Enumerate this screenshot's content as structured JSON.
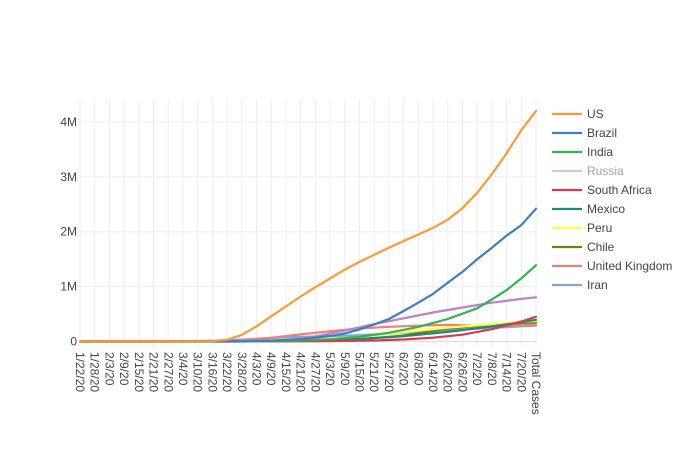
{
  "chart_data": {
    "type": "line",
    "title": "",
    "xlabel": "",
    "ylabel": "",
    "x_ticks": [
      "1/22/20",
      "1/28/20",
      "2/3/20",
      "2/9/20",
      "2/15/20",
      "2/21/20",
      "2/27/20",
      "3/4/20",
      "3/10/20",
      "3/16/20",
      "3/22/20",
      "3/28/20",
      "4/3/20",
      "4/9/20",
      "4/15/20",
      "4/21/20",
      "4/27/20",
      "5/3/20",
      "5/9/20",
      "5/15/20",
      "5/21/20",
      "5/27/20",
      "6/2/20",
      "6/8/20",
      "6/14/20",
      "6/20/20",
      "6/26/20",
      "7/2/20",
      "7/8/20",
      "7/14/20",
      "7/20/20",
      "Total Cases"
    ],
    "y_ticks": [
      {
        "value": 0,
        "label": "0"
      },
      {
        "value": 1000000,
        "label": "1M"
      },
      {
        "value": 2000000,
        "label": "2M"
      },
      {
        "value": 3000000,
        "label": "3M"
      },
      {
        "value": 4000000,
        "label": "4M"
      }
    ],
    "ylim": [
      -100000,
      4400000
    ],
    "legend_position": "right",
    "grid": true,
    "series": [
      {
        "name": "US",
        "color": "#ff9933",
        "legend_dim": false,
        "points": [
          [
            "1/22/20",
            0
          ],
          [
            "2/15/20",
            15
          ],
          [
            "3/4/20",
            150
          ],
          [
            "3/16/20",
            4600
          ],
          [
            "3/22/20",
            33000
          ],
          [
            "3/28/20",
            120000
          ],
          [
            "4/3/20",
            275000
          ],
          [
            "4/9/20",
            460000
          ],
          [
            "4/15/20",
            640000
          ],
          [
            "4/21/20",
            820000
          ],
          [
            "4/27/20",
            990000
          ],
          [
            "5/3/20",
            1150000
          ],
          [
            "5/9/20",
            1310000
          ],
          [
            "5/15/20",
            1450000
          ],
          [
            "5/21/20",
            1580000
          ],
          [
            "5/27/20",
            1710000
          ],
          [
            "6/2/20",
            1830000
          ],
          [
            "6/8/20",
            1950000
          ],
          [
            "6/14/20",
            2070000
          ],
          [
            "6/20/20",
            2220000
          ],
          [
            "6/26/20",
            2430000
          ],
          [
            "7/2/20",
            2710000
          ],
          [
            "7/8/20",
            3050000
          ],
          [
            "7/14/20",
            3430000
          ],
          [
            "7/20/20",
            3850000
          ],
          [
            "Total Cases",
            4200000
          ]
        ]
      },
      {
        "name": "Brazil",
        "color": "#3d7ebf",
        "legend_dim": false,
        "points": [
          [
            "1/22/20",
            0
          ],
          [
            "3/16/20",
            200
          ],
          [
            "3/28/20",
            3400
          ],
          [
            "4/9/20",
            18000
          ],
          [
            "4/21/20",
            43000
          ],
          [
            "5/3/20",
            101000
          ],
          [
            "5/9/20",
            146000
          ],
          [
            "5/15/20",
            220000
          ],
          [
            "5/21/20",
            310000
          ],
          [
            "5/27/20",
            411000
          ],
          [
            "6/2/20",
            555000
          ],
          [
            "6/8/20",
            707000
          ],
          [
            "6/14/20",
            868000
          ],
          [
            "6/20/20",
            1070000
          ],
          [
            "6/26/20",
            1270000
          ],
          [
            "7/2/20",
            1500000
          ],
          [
            "7/8/20",
            1710000
          ],
          [
            "7/14/20",
            1930000
          ],
          [
            "7/20/20",
            2120000
          ],
          [
            "Total Cases",
            2420000
          ]
        ]
      },
      {
        "name": "India",
        "color": "#33b34d",
        "legend_dim": false,
        "points": [
          [
            "1/22/20",
            0
          ],
          [
            "3/28/20",
            1000
          ],
          [
            "4/9/20",
            6700
          ],
          [
            "4/21/20",
            20000
          ],
          [
            "5/3/20",
            42000
          ],
          [
            "5/15/20",
            85000
          ],
          [
            "5/27/20",
            158000
          ],
          [
            "6/8/20",
            266000
          ],
          [
            "6/20/20",
            410000
          ],
          [
            "7/2/20",
            605000
          ],
          [
            "7/8/20",
            767000
          ],
          [
            "7/14/20",
            936000
          ],
          [
            "7/20/20",
            1150000
          ],
          [
            "Total Cases",
            1390000
          ]
        ]
      },
      {
        "name": "Russia",
        "color": "#c080c8",
        "legend_dim": true,
        "points": [
          [
            "1/22/20",
            0
          ],
          [
            "3/22/20",
            300
          ],
          [
            "4/3/20",
            4100
          ],
          [
            "4/15/20",
            24000
          ],
          [
            "4/27/20",
            93000
          ],
          [
            "5/9/20",
            198000
          ],
          [
            "5/21/20",
            318000
          ],
          [
            "6/2/20",
            423000
          ],
          [
            "6/14/20",
            528000
          ],
          [
            "6/26/20",
            620000
          ],
          [
            "7/8/20",
            707000
          ],
          [
            "7/20/20",
            777000
          ],
          [
            "Total Cases",
            805000
          ]
        ]
      },
      {
        "name": "South Africa",
        "color": "#d93b4a",
        "legend_dim": false,
        "points": [
          [
            "1/22/20",
            0
          ],
          [
            "4/9/20",
            1900
          ],
          [
            "5/3/20",
            6300
          ],
          [
            "5/21/20",
            19000
          ],
          [
            "6/2/20",
            35800
          ],
          [
            "6/14/20",
            70000
          ],
          [
            "6/26/20",
            124000
          ],
          [
            "7/8/20",
            224000
          ],
          [
            "7/20/20",
            365000
          ],
          [
            "Total Cases",
            450000
          ]
        ]
      },
      {
        "name": "Mexico",
        "color": "#1a8a80",
        "legend_dim": false,
        "points": [
          [
            "1/22/20",
            0
          ],
          [
            "4/9/20",
            3400
          ],
          [
            "4/27/20",
            15000
          ],
          [
            "5/15/20",
            45000
          ],
          [
            "6/2/20",
            97000
          ],
          [
            "6/20/20",
            175000
          ],
          [
            "7/8/20",
            275000
          ],
          [
            "7/20/20",
            350000
          ],
          [
            "Total Cases",
            395000
          ]
        ]
      },
      {
        "name": "Peru",
        "color": "#ffff44",
        "legend_dim": false,
        "points": [
          [
            "1/22/20",
            0
          ],
          [
            "4/9/20",
            5900
          ],
          [
            "4/27/20",
            28000
          ],
          [
            "5/15/20",
            84000
          ],
          [
            "6/2/20",
            170000
          ],
          [
            "6/20/20",
            251000
          ],
          [
            "7/8/20",
            316000
          ],
          [
            "7/20/20",
            354000
          ],
          [
            "Total Cases",
            375000
          ]
        ]
      },
      {
        "name": "Chile",
        "color": "#7a7a10",
        "legend_dim": false,
        "points": [
          [
            "1/22/20",
            0
          ],
          [
            "4/9/20",
            5500
          ],
          [
            "4/27/20",
            14000
          ],
          [
            "5/15/20",
            43000
          ],
          [
            "6/2/20",
            108000
          ],
          [
            "6/20/20",
            236000
          ],
          [
            "7/8/20",
            306000
          ],
          [
            "7/20/20",
            334000
          ],
          [
            "Total Cases",
            345000
          ]
        ]
      },
      {
        "name": "United Kingdom",
        "color": "#f08070",
        "legend_dim": false,
        "points": [
          [
            "1/22/20",
            0
          ],
          [
            "3/16/20",
            1500
          ],
          [
            "3/28/20",
            17000
          ],
          [
            "4/9/20",
            66000
          ],
          [
            "4/21/20",
            130000
          ],
          [
            "5/3/20",
            187000
          ],
          [
            "5/15/20",
            237000
          ],
          [
            "5/27/20",
            268000
          ],
          [
            "6/8/20",
            288000
          ],
          [
            "6/20/20",
            302000
          ],
          [
            "7/2/20",
            285000
          ],
          [
            "7/8/20",
            288000
          ],
          [
            "7/20/20",
            296000
          ],
          [
            "Total Cases",
            300000
          ]
        ]
      },
      {
        "name": "Iran",
        "color": "#80a8d0",
        "legend_dim": false,
        "points": [
          [
            "1/22/20",
            0
          ],
          [
            "2/21/20",
            20
          ],
          [
            "3/4/20",
            2900
          ],
          [
            "3/16/20",
            15000
          ],
          [
            "3/28/20",
            35000
          ],
          [
            "4/9/20",
            66000
          ],
          [
            "4/21/20",
            85000
          ],
          [
            "5/3/20",
            98000
          ],
          [
            "5/15/20",
            117000
          ],
          [
            "5/27/20",
            141000
          ],
          [
            "6/8/20",
            173000
          ],
          [
            "6/20/20",
            204000
          ],
          [
            "7/2/20",
            235000
          ],
          [
            "7/14/20",
            262000
          ],
          [
            "7/20/20",
            278000
          ],
          [
            "Total Cases",
            290000
          ]
        ]
      }
    ]
  }
}
